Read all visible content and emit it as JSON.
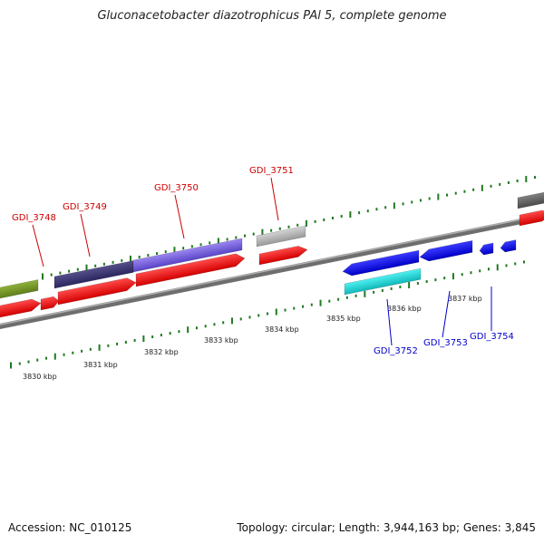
{
  "title": "Gluconacetobacter diazotrophicus PAl 5, complete genome",
  "footer": {
    "accession": "Accession: NC_010125",
    "stats": "Topology: circular; Length: 3,944,163 bp; Genes: 3,845"
  },
  "colors": {
    "backbone": "#7d7d7d",
    "tick": "#1f7a1f",
    "forward_label": "#cc0000",
    "reverse_label": "#0000cc",
    "cds": "#ff0000"
  },
  "kbp_labels": [
    "3830 kbp",
    "3831 kbp",
    "3832 kbp",
    "3833 kbp",
    "3834 kbp",
    "3835 kbp",
    "3836 kbp",
    "3837 kbp"
  ],
  "gene_labels_top": [
    "GDI_3748",
    "GDI_3749",
    "GDI_3750",
    "GDI_3751"
  ],
  "gene_labels_bottom": [
    "GDI_3752",
    "GDI_3753",
    "GDI_3754"
  ]
}
